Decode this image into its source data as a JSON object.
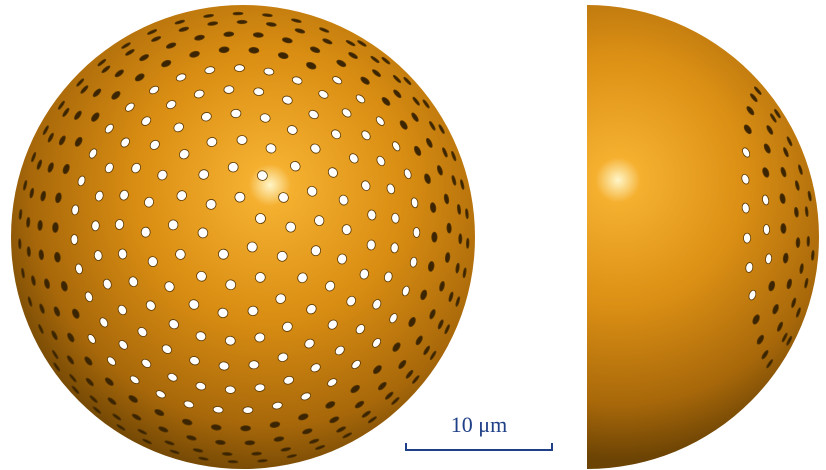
{
  "scale_bar": {
    "label": "10 μm"
  }
}
